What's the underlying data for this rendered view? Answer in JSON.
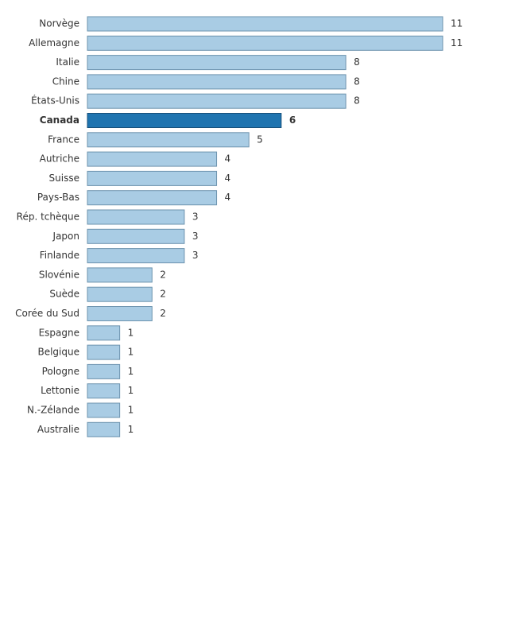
{
  "chart_data": {
    "type": "barh",
    "categories": [
      "Norvège",
      "Allemagne",
      "Italie",
      "Chine",
      "États-Unis",
      "Canada",
      "France",
      "Autriche",
      "Suisse",
      "Pays-Bas",
      "Rép. tchèque",
      "Japon",
      "Finlande",
      "Slovénie",
      "Suède",
      "Corée du Sud",
      "Espagne",
      "Belgique",
      "Pologne",
      "Lettonie",
      "N.-Zélande",
      "Australie"
    ],
    "values": [
      11,
      11,
      8,
      8,
      8,
      6,
      5,
      4,
      4,
      4,
      3,
      3,
      3,
      2,
      2,
      2,
      1,
      1,
      1,
      1,
      1,
      1
    ],
    "color": "#a9cce4",
    "colors": [
      "#a9cce4",
      "#a9cce4",
      "#a9cce4",
      "#a9cce4",
      "#a9cce4",
      "#1f74b0",
      "#a9cce4",
      "#a9cce4",
      "#a9cce4",
      "#a9cce4",
      "#a9cce4",
      "#a9cce4",
      "#a9cce4",
      "#a9cce4",
      "#a9cce4",
      "#a9cce4",
      "#a9cce4",
      "#a9cce4",
      "#a9cce4",
      "#a9cce4",
      "#a9cce4",
      "#a9cce4"
    ]
  }
}
